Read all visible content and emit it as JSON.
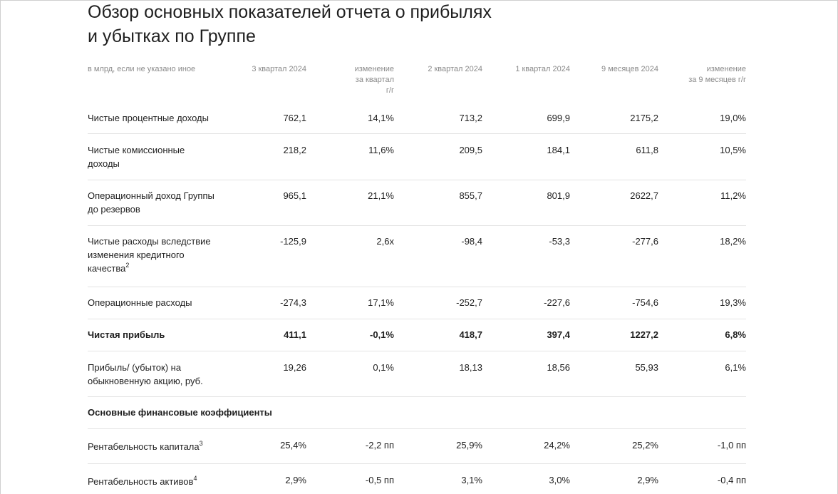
{
  "title_line1": "Обзор основных показателей отчета о прибылях",
  "title_line2": "и убытках по Группе",
  "headers": {
    "units": "в млрд, если не указано иное",
    "q3": "3 квартал 2024",
    "chg_q_1": "изменение",
    "chg_q_2": "за квартал",
    "chg_q_3": "г/г",
    "q2": "2 квартал 2024",
    "q1": "1 квартал 2024",
    "m9": "9 месяцев 2024",
    "chg_9m_1": "изменение",
    "chg_9m_2": "за 9 месяцев г/г"
  },
  "rows": [
    {
      "label1": "Чистые процентные доходы",
      "label2": "",
      "label3": "",
      "sup": "",
      "values": [
        "762,1",
        "14,1%",
        "713,2",
        "699,9",
        "2175,2",
        "19,0%"
      ]
    },
    {
      "label1": "Чистые комиссионные",
      "label2": "доходы",
      "label3": "",
      "sup": "",
      "values": [
        "218,2",
        "11,6%",
        "209,5",
        "184,1",
        "611,8",
        "10,5%"
      ]
    },
    {
      "label1": "Операционный доход Группы",
      "label2": "до резервов",
      "label3": "",
      "sup": "",
      "values": [
        "965,1",
        "21,1%",
        "855,7",
        "801,9",
        "2622,7",
        "11,2%"
      ]
    },
    {
      "label1": "Чистые расходы вследствие",
      "label2": "изменения кредитного",
      "label3": "качества",
      "sup": "2",
      "values": [
        "-125,9",
        "2,6x",
        "-98,4",
        "-53,3",
        "-277,6",
        "18,2%"
      ]
    },
    {
      "label1": "Операционные расходы",
      "label2": "",
      "label3": "",
      "sup": "",
      "values": [
        "-274,3",
        "17,1%",
        "-252,7",
        "-227,6",
        "-754,6",
        "19,3%"
      ]
    },
    {
      "label1": "Чистая прибыль",
      "label2": "",
      "label3": "",
      "sup": "",
      "values": [
        "411,1",
        "-0,1%",
        "418,7",
        "397,4",
        "1227,2",
        "6,8%"
      ]
    },
    {
      "label1": "Прибыль/ (убыток) на",
      "label2": "обыкновенную акцию, руб.",
      "label3": "",
      "sup": "",
      "values": [
        "19,26",
        "0,1%",
        "18,13",
        "18,56",
        "55,93",
        "6,1%"
      ]
    },
    {
      "label1": "Основные финансовые коэффициенты",
      "label2": "",
      "label3": "",
      "sup": "",
      "values": [
        "",
        "",
        "",
        "",
        "",
        ""
      ]
    },
    {
      "label1": "Рентабельность капитала",
      "label2": "",
      "label3": "",
      "sup": "3",
      "values": [
        "25,4%",
        "-2,2 пп",
        "25,9%",
        "24,2%",
        "25,2%",
        "-1,0 пп"
      ]
    },
    {
      "label1": "Рентабельность активов",
      "label2": "",
      "label3": "",
      "sup": "4",
      "values": [
        "2,9%",
        "-0,5 пп",
        "3,1%",
        "3,0%",
        "2,9%",
        "-0,4 пп"
      ]
    }
  ]
}
